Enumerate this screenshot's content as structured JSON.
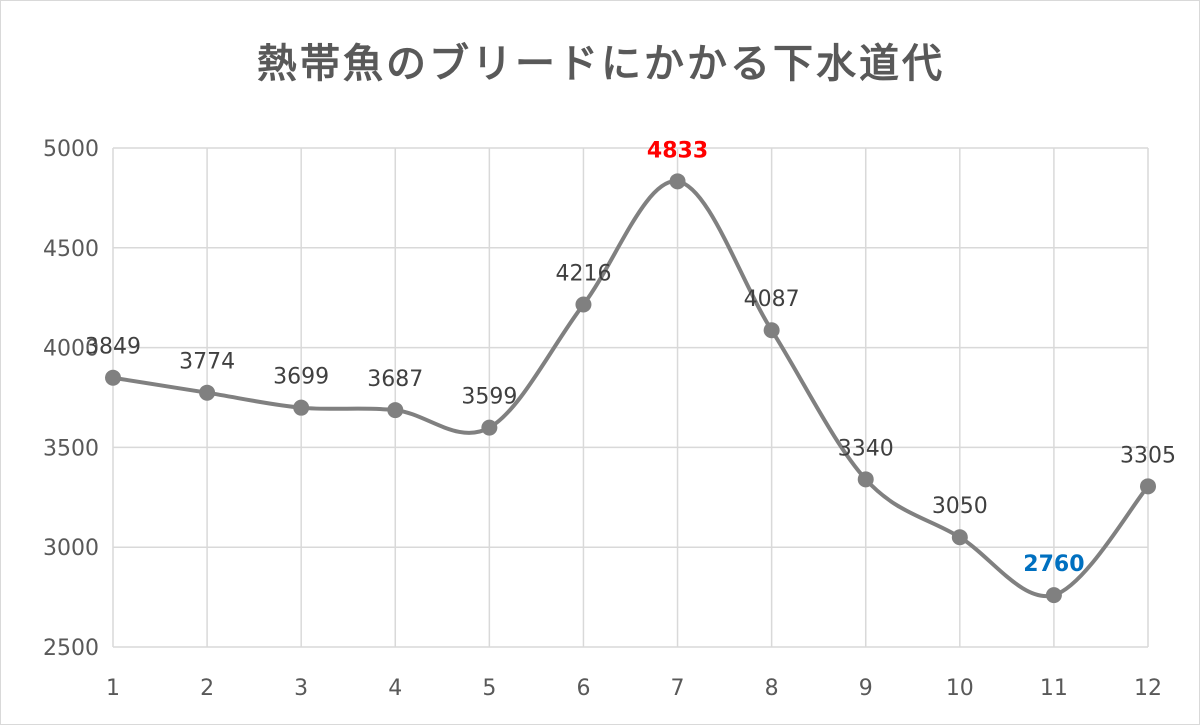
{
  "chart_data": {
    "type": "line",
    "smooth": true,
    "title": "熱帯魚のブリードにかかる下水道代",
    "x": [
      "1",
      "2",
      "3",
      "4",
      "5",
      "6",
      "7",
      "8",
      "9",
      "10",
      "11",
      "12"
    ],
    "series": [
      {
        "values": [
          3849,
          3774,
          3699,
          3687,
          3599,
          4216,
          4833,
          4087,
          3340,
          3050,
          2760,
          3305
        ],
        "color": "#808080",
        "data_labels": [
          "3849",
          "3774",
          "3699",
          "3687",
          "3599",
          "4216",
          "4833",
          "4087",
          "3340",
          "3050",
          "2760",
          "3305"
        ]
      }
    ],
    "highlight": {
      "max_color": "#ff0000",
      "min_color": "#0070c0"
    },
    "ylim": [
      2500,
      5000
    ],
    "y_ticks": [
      "2500",
      "3000",
      "3500",
      "4000",
      "4500",
      "5000"
    ],
    "grid": {
      "vertical": true,
      "horizontal": true,
      "color": "#d9d9d9"
    },
    "legend": "none"
  }
}
